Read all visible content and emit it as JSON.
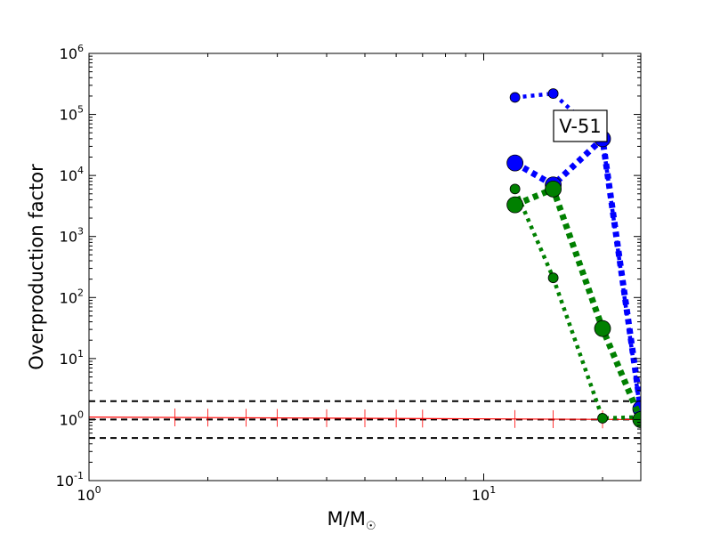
{
  "chart_data": {
    "type": "line",
    "xlabel": "M/M",
    "xlabel_sub": "☉",
    "ylabel": "Overproduction factor",
    "xscale": "log",
    "yscale": "log",
    "xlim": [
      1,
      25
    ],
    "ylim": [
      0.1,
      1000000
    ],
    "x_ticks": [
      {
        "value": 1,
        "base": "10",
        "exp": "0"
      },
      {
        "value": 10,
        "base": "10",
        "exp": "1"
      }
    ],
    "y_ticks": [
      {
        "value": 0.1,
        "base": "10",
        "exp": "-1"
      },
      {
        "value": 1,
        "base": "10",
        "exp": "0"
      },
      {
        "value": 10,
        "base": "10",
        "exp": "1"
      },
      {
        "value": 100,
        "base": "10",
        "exp": "2"
      },
      {
        "value": 1000,
        "base": "10",
        "exp": "3"
      },
      {
        "value": 10000,
        "base": "10",
        "exp": "4"
      },
      {
        "value": 100000,
        "base": "10",
        "exp": "5"
      },
      {
        "value": 1000000,
        "base": "10",
        "exp": "6"
      }
    ],
    "annotation": "V-51",
    "reference_lines": [
      {
        "y": 2,
        "color": "#000000",
        "style": "dashed"
      },
      {
        "y": 1,
        "color": "#000000",
        "style": "dashed"
      },
      {
        "y": 0.5,
        "color": "#000000",
        "style": "dashed"
      }
    ],
    "baseline": {
      "x": [
        1,
        25
      ],
      "y": [
        1.1,
        1.0
      ],
      "color": "#ff0000",
      "tick_marks_x": [
        1.65,
        2,
        2.5,
        3,
        4,
        5,
        6,
        7,
        12,
        15,
        20
      ]
    },
    "series": [
      {
        "color": "#0000ff",
        "weight": "thin",
        "x": [
          12,
          15,
          20,
          25
        ],
        "y": [
          190000,
          220000,
          40000,
          1.2
        ]
      },
      {
        "color": "#0000ff",
        "weight": "thick",
        "x": [
          12,
          15,
          20,
          25
        ],
        "y": [
          16000,
          7000,
          40000,
          1.5
        ]
      },
      {
        "color": "#008000",
        "weight": "thin",
        "x": [
          12,
          15,
          20,
          25
        ],
        "y": [
          6000,
          210,
          1.05,
          1.1
        ]
      },
      {
        "color": "#008000",
        "weight": "thick",
        "x": [
          12,
          15,
          20,
          25
        ],
        "y": [
          3300,
          6000,
          31,
          1.0
        ]
      }
    ],
    "grid": false
  }
}
